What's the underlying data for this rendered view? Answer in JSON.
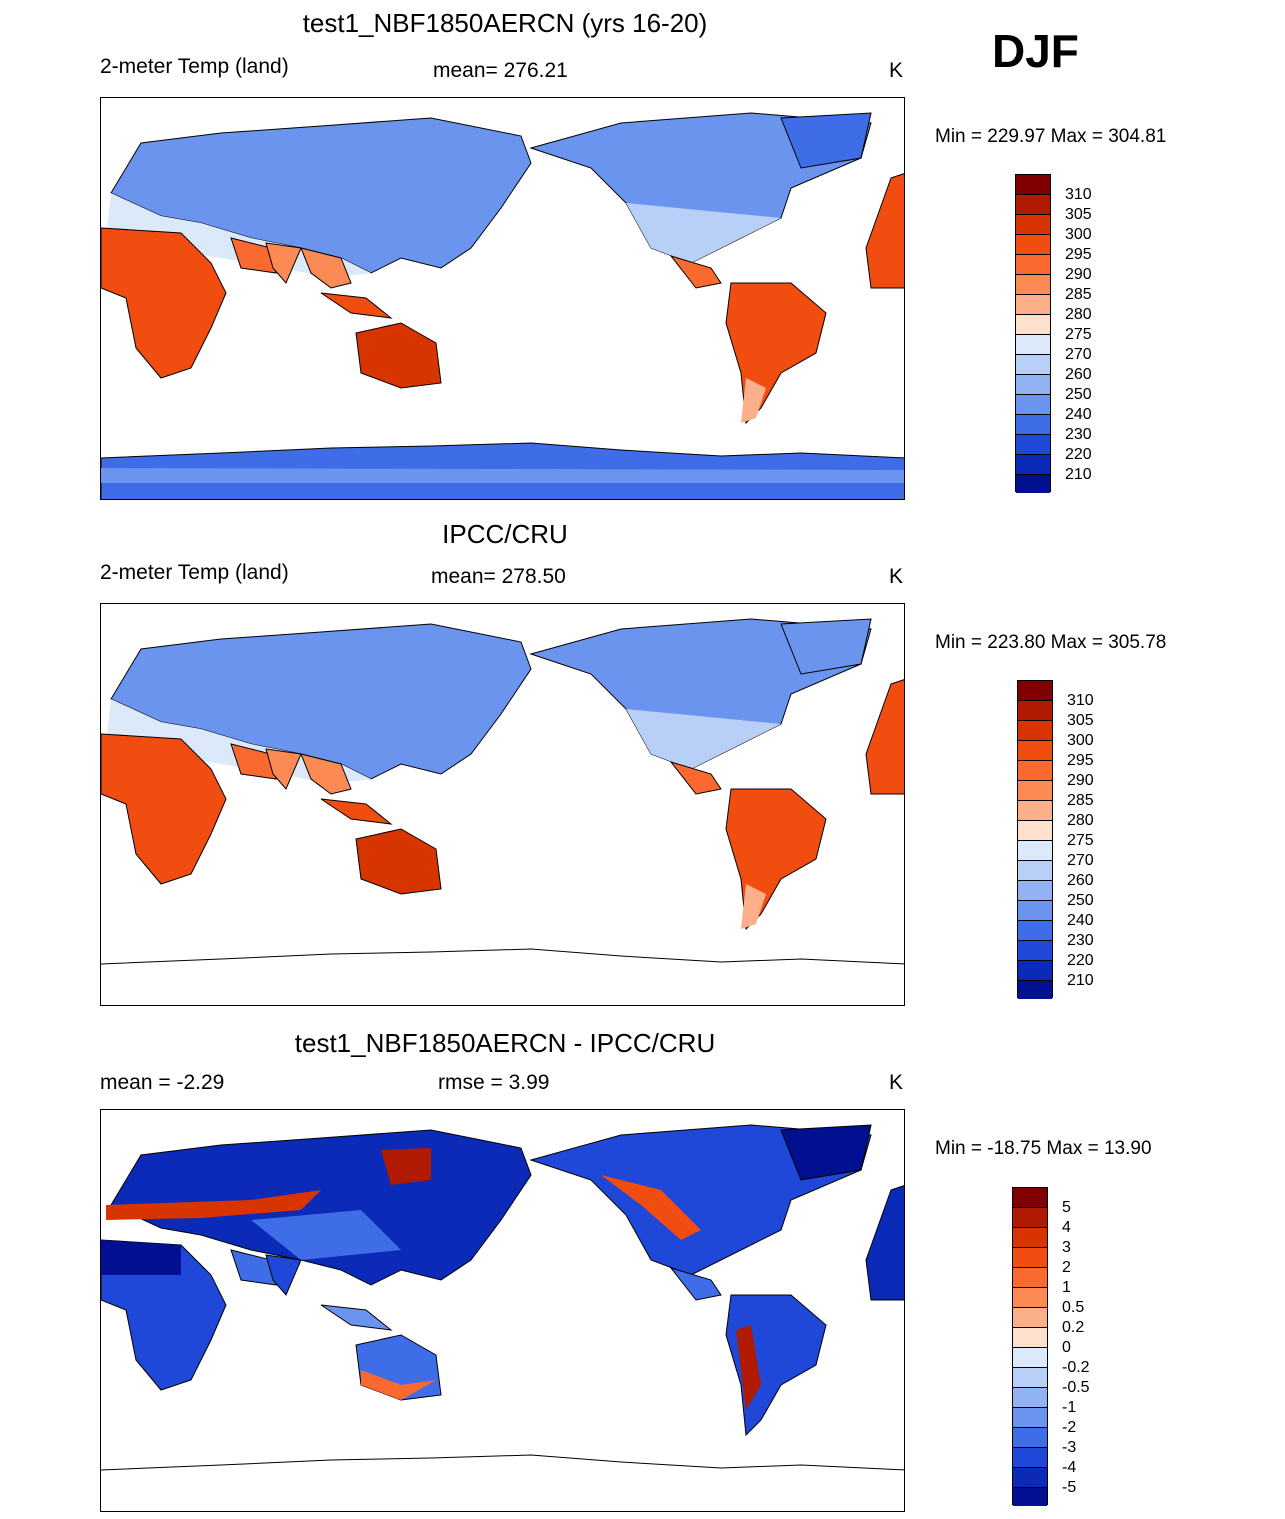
{
  "season": "DJF",
  "panels": [
    {
      "title": "test1_NBF1850AERCN (yrs 16-20)",
      "left_label": "2-meter Temp (land)",
      "center_label": "mean= 276.21",
      "units": "K",
      "minmax": "Min = 229.97 Max = 304.81",
      "colorbar_labels": [
        "310",
        "305",
        "300",
        "295",
        "290",
        "285",
        "280",
        "275",
        "270",
        "260",
        "250",
        "240",
        "230",
        "220",
        "210"
      ]
    },
    {
      "title": "IPCC/CRU",
      "left_label": "2-meter Temp (land)",
      "center_label": "mean= 278.50",
      "units": "K",
      "minmax": "Min = 223.80 Max = 305.78",
      "colorbar_labels": [
        "310",
        "305",
        "300",
        "295",
        "290",
        "285",
        "280",
        "275",
        "270",
        "260",
        "250",
        "240",
        "230",
        "220",
        "210"
      ]
    },
    {
      "title": "test1_NBF1850AERCN - IPCC/CRU",
      "left_label": "mean =  -2.29",
      "center_label": "rmse =   3.99",
      "units": "K",
      "minmax": "Min = -18.75 Max =  13.90",
      "colorbar_labels": [
        "5",
        "4",
        "3",
        "2",
        "1",
        "0.5",
        "0.2",
        "0",
        "-0.2",
        "-0.5",
        "-1",
        "-2",
        "-3",
        "-4",
        "-5"
      ]
    }
  ],
  "colors": {
    "abs_scale": [
      "#800000",
      "#b01a00",
      "#d83400",
      "#f24d10",
      "#fa6a30",
      "#fb8a55",
      "#fcaf88",
      "#fde1cc",
      "#dbe9fb",
      "#b8d0f7",
      "#91b2f3",
      "#6a94ee",
      "#3f6de8",
      "#1f48d8",
      "#0b2ab8",
      "#001090"
    ],
    "diff_scale": [
      "#800000",
      "#b01a00",
      "#d83400",
      "#f24d10",
      "#fa6a30",
      "#fb8a55",
      "#fcaf88",
      "#fde1cc",
      "#dbe9fb",
      "#b8d0f7",
      "#91b2f3",
      "#6a94ee",
      "#3f6de8",
      "#1f48d8",
      "#0b2ab8",
      "#001090"
    ]
  }
}
